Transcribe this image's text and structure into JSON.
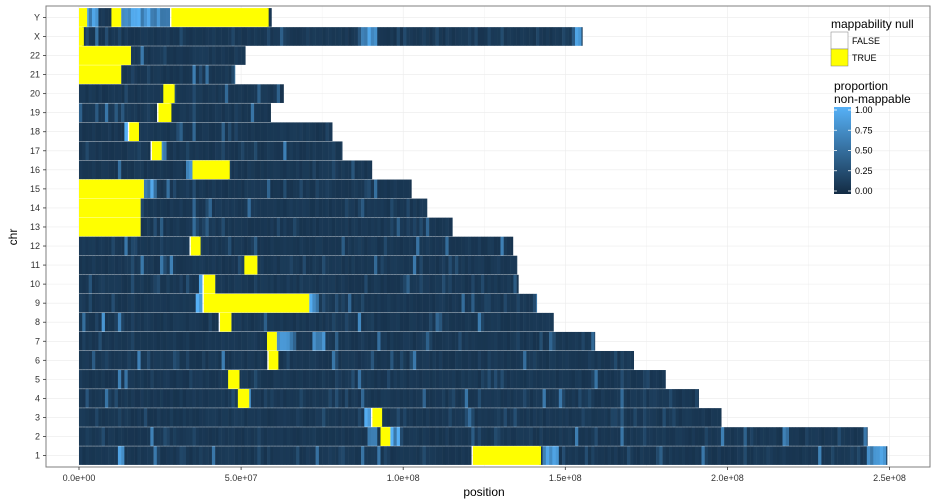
{
  "chart_data": {
    "type": "heatmap",
    "xlabel": "position",
    "ylabel": "chr",
    "xlim": [
      -20000000,
      262000000
    ],
    "x_ticks": [
      {
        "value": 0,
        "label": "0.0e+00"
      },
      {
        "value": 50000000,
        "label": "5.0e+07"
      },
      {
        "value": 100000000,
        "label": "1.0e+08"
      },
      {
        "value": 150000000,
        "label": "1.5e+08"
      },
      {
        "value": 200000000,
        "label": "2.0e+08"
      },
      {
        "value": 250000000,
        "label": "2.5e+08"
      }
    ],
    "categories": [
      "1",
      "2",
      "3",
      "4",
      "5",
      "6",
      "7",
      "8",
      "9",
      "10",
      "11",
      "12",
      "13",
      "14",
      "15",
      "16",
      "17",
      "18",
      "19",
      "20",
      "21",
      "22",
      "X",
      "Y"
    ],
    "chromosome_lengths": [
      249250621,
      243199373,
      198022430,
      191154276,
      180915260,
      171115067,
      159138663,
      146364022,
      141213431,
      135534747,
      135006516,
      133851895,
      115169878,
      107349540,
      102531392,
      90354753,
      81195210,
      78077248,
      59128983,
      63025520,
      48129895,
      51304566,
      155270560,
      59373566
    ],
    "mappability_null_regions": [
      {
        "chr": "1",
        "start": 121500000,
        "end": 142500000
      },
      {
        "chr": "2",
        "start": 93000000,
        "end": 96000000
      },
      {
        "chr": "3",
        "start": 90500000,
        "end": 93500000
      },
      {
        "chr": "4",
        "start": 49000000,
        "end": 52500000
      },
      {
        "chr": "5",
        "start": 46000000,
        "end": 49500000
      },
      {
        "chr": "6",
        "start": 58500000,
        "end": 61500000
      },
      {
        "chr": "7",
        "start": 58000000,
        "end": 61000000
      },
      {
        "chr": "8",
        "start": 43500000,
        "end": 47000000
      },
      {
        "chr": "9",
        "start": 38500000,
        "end": 71000000
      },
      {
        "chr": "10",
        "start": 38500000,
        "end": 42000000
      },
      {
        "chr": "11",
        "start": 51000000,
        "end": 55000000
      },
      {
        "chr": "12",
        "start": 34500000,
        "end": 37500000
      },
      {
        "chr": "13",
        "start": 0,
        "end": 19000000
      },
      {
        "chr": "14",
        "start": 0,
        "end": 19000000
      },
      {
        "chr": "15",
        "start": 0,
        "end": 20000000
      },
      {
        "chr": "16",
        "start": 35000000,
        "end": 46500000
      },
      {
        "chr": "17",
        "start": 22500000,
        "end": 25500000
      },
      {
        "chr": "18",
        "start": 15500000,
        "end": 18500000
      },
      {
        "chr": "19",
        "start": 24500000,
        "end": 28500000
      },
      {
        "chr": "20",
        "start": 26000000,
        "end": 29500000
      },
      {
        "chr": "21",
        "start": 0,
        "end": 13000000
      },
      {
        "chr": "22",
        "start": 0,
        "end": 16000000
      },
      {
        "chr": "X",
        "start": 0,
        "end": 1500000
      },
      {
        "chr": "Y",
        "start": 0,
        "end": 2500000
      },
      {
        "chr": "Y",
        "start": 10000000,
        "end": 13000000
      },
      {
        "chr": "Y",
        "start": 28500000,
        "end": 58500000
      }
    ],
    "high_nonmappable_regions": [
      {
        "chr": "1",
        "start": 12500000,
        "end": 14500000
      },
      {
        "chr": "1",
        "start": 143000000,
        "end": 148000000
      },
      {
        "chr": "1",
        "start": 243000000,
        "end": 249000000
      },
      {
        "chr": "2",
        "start": 89500000,
        "end": 92500000
      },
      {
        "chr": "2",
        "start": 96500000,
        "end": 99000000
      },
      {
        "chr": "2",
        "start": 242000000,
        "end": 243000000
      },
      {
        "chr": "3",
        "start": 88500000,
        "end": 90500000
      },
      {
        "chr": "4",
        "start": 52500000,
        "end": 53500000
      },
      {
        "chr": "6",
        "start": 58000000,
        "end": 58500000
      },
      {
        "chr": "7",
        "start": 61000000,
        "end": 66000000
      },
      {
        "chr": "7",
        "start": 72500000,
        "end": 76000000
      },
      {
        "chr": "8",
        "start": 7000000,
        "end": 8500000
      },
      {
        "chr": "8",
        "start": 12000000,
        "end": 13000000
      },
      {
        "chr": "8",
        "start": 86500000,
        "end": 87500000
      },
      {
        "chr": "9",
        "start": 36000000,
        "end": 38500000
      },
      {
        "chr": "9",
        "start": 41500000,
        "end": 48500000
      },
      {
        "chr": "9",
        "start": 71000000,
        "end": 74000000
      },
      {
        "chr": "10",
        "start": 37500000,
        "end": 38500000
      },
      {
        "chr": "15",
        "start": 20000000,
        "end": 24000000
      },
      {
        "chr": "16",
        "start": 33000000,
        "end": 35000000
      },
      {
        "chr": "17",
        "start": 25500000,
        "end": 26500000
      },
      {
        "chr": "18",
        "start": 14500000,
        "end": 15500000
      },
      {
        "chr": "X",
        "start": 88000000,
        "end": 92000000
      },
      {
        "chr": "X",
        "start": 153500000,
        "end": 155000000
      },
      {
        "chr": "Y",
        "start": 2500000,
        "end": 6500000
      },
      {
        "chr": "Y",
        "start": 13000000,
        "end": 28500000
      }
    ],
    "grid": true,
    "legend_placement": "top-right"
  },
  "legend": {
    "mappability_title": "mappability null",
    "items": [
      {
        "label": "FALSE",
        "color": "#ffffff"
      },
      {
        "label": "TRUE",
        "color": "#ffff00"
      }
    ],
    "proportion_title_line1": "proportion",
    "proportion_title_line2": "non-mappable",
    "proportion_ticks": [
      {
        "value": 1.0,
        "label": "1.00"
      },
      {
        "value": 0.75,
        "label": "0.75"
      },
      {
        "value": 0.5,
        "label": "0.50"
      },
      {
        "value": 0.25,
        "label": "0.25"
      },
      {
        "value": 0.0,
        "label": "0.00"
      }
    ],
    "gradient_low": "#132b43",
    "gradient_high": "#56b1f7"
  },
  "colors": {
    "null_true": "#ffff00",
    "panel_border": "#7f7f7f",
    "grid": "#ebebeb"
  }
}
